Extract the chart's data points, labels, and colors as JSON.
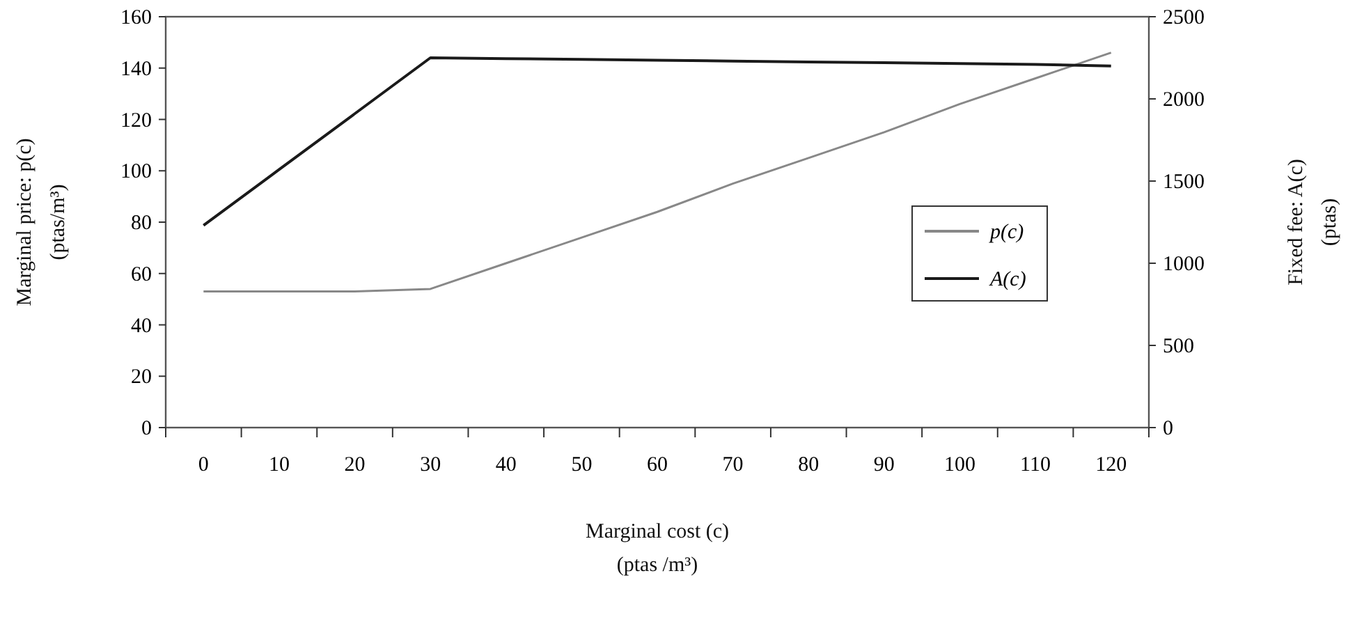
{
  "chart_data": {
    "type": "line",
    "xlabel": "Marginal cost (c)\n(ptas /m³)",
    "ylabel": "Marginal price: p(c)\n(ptas/m³)",
    "y2label": "Fixed fee: A(c)\n(ptas)",
    "categories": [
      "0",
      "10",
      "20",
      "30",
      "40",
      "50",
      "60",
      "70",
      "80",
      "90",
      "100",
      "110",
      "120"
    ],
    "series": [
      {
        "name": "p(c)",
        "color": "#888888",
        "values": [
          53,
          53,
          53,
          54,
          64,
          74,
          84,
          95,
          105,
          115,
          126,
          136,
          146
        ]
      },
      {
        "name": "A(c)",
        "color": "#1a1a1a",
        "axis": "y2",
        "values": [
          1230,
          1570,
          1910,
          2250,
          2245,
          2240,
          2235,
          2230,
          2225,
          2220,
          2215,
          2210,
          2200
        ]
      }
    ],
    "ylim": [
      0,
      160
    ],
    "yticks": [
      0,
      20,
      40,
      60,
      80,
      100,
      120,
      140,
      160
    ],
    "y2lim": [
      0,
      2500
    ],
    "y2ticks": [
      0,
      500,
      1000,
      1500,
      2000,
      2500
    ],
    "grid": false,
    "legend": "right",
    "marker": "none",
    "line_style": "solid"
  }
}
